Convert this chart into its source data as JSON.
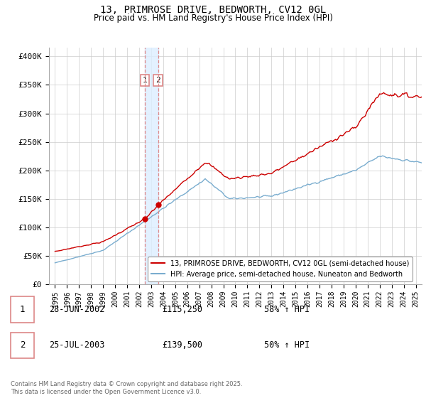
{
  "title": "13, PRIMROSE DRIVE, BEDWORTH, CV12 0GL",
  "subtitle": "Price paid vs. HM Land Registry's House Price Index (HPI)",
  "ylabel_ticks": [
    "£0",
    "£50K",
    "£100K",
    "£150K",
    "£200K",
    "£250K",
    "£300K",
    "£350K",
    "£400K"
  ],
  "ytick_values": [
    0,
    50000,
    100000,
    150000,
    200000,
    250000,
    300000,
    350000,
    400000
  ],
  "ylim": [
    0,
    415000
  ],
  "xlim_start": 1994.5,
  "xlim_end": 2025.5,
  "xticks": [
    1995,
    1996,
    1997,
    1998,
    1999,
    2000,
    2001,
    2002,
    2003,
    2004,
    2005,
    2006,
    2007,
    2008,
    2009,
    2010,
    2011,
    2012,
    2013,
    2014,
    2015,
    2016,
    2017,
    2018,
    2019,
    2020,
    2021,
    2022,
    2023,
    2024,
    2025
  ],
  "red_line_color": "#cc0000",
  "blue_line_color": "#7aadcf",
  "vline_color": "#dd8888",
  "shade_color": "#ddeeff",
  "transaction1_x": 2002.49,
  "transaction2_x": 2003.57,
  "transaction1_price": 115250,
  "transaction2_price": 139500,
  "legend1": "13, PRIMROSE DRIVE, BEDWORTH, CV12 0GL (semi-detached house)",
  "legend2": "HPI: Average price, semi-detached house, Nuneaton and Bedworth",
  "table_row1": [
    "1",
    "28-JUN-2002",
    "£115,250",
    "58% ↑ HPI"
  ],
  "table_row2": [
    "2",
    "25-JUL-2003",
    "£139,500",
    "50% ↑ HPI"
  ],
  "footnote": "Contains HM Land Registry data © Crown copyright and database right 2025.\nThis data is licensed under the Open Government Licence v3.0.",
  "background_color": "#ffffff"
}
